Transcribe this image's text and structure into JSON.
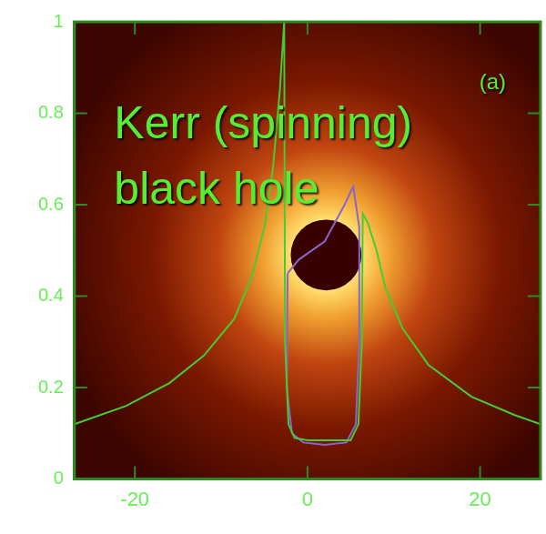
{
  "chart_data": {
    "type": "line",
    "annotations": [
      "Kerr (spinning) black hole",
      "(a)"
    ],
    "xlim": [
      -27,
      27
    ],
    "xticks": [
      -20,
      0,
      20
    ],
    "ylim": [
      0,
      1
    ],
    "yticks": [
      0,
      0.2,
      0.4,
      0.6,
      0.8,
      1
    ],
    "grid": false,
    "series": [
      {
        "color": "#44cc33",
        "x": [
          -27,
          -21,
          -16,
          -12,
          -8.5,
          -6.5,
          -5,
          -4,
          -3.2,
          -2.8,
          -2.7,
          -2.6,
          -2.2,
          -1.5,
          0,
          5,
          5.9,
          6.3,
          6.4,
          7,
          8,
          9,
          11,
          14,
          19,
          24,
          27
        ],
        "values": [
          0.12,
          0.16,
          0.21,
          0.27,
          0.35,
          0.44,
          0.55,
          0.68,
          0.85,
          0.97,
          1,
          0.3,
          0.12,
          0.09,
          0.085,
          0.085,
          0.12,
          0.3,
          0.58,
          0.56,
          0.5,
          0.42,
          0.33,
          0.25,
          0.18,
          0.14,
          0.12
        ]
      },
      {
        "color": "#8866cc",
        "x": [
          -2.3,
          -2.4,
          -1.8,
          -0.5,
          2,
          4.5,
          5.6,
          6,
          6,
          5.3,
          4.3,
          2,
          -1,
          -2.3
        ],
        "values": [
          0.45,
          0.2,
          0.1,
          0.08,
          0.075,
          0.08,
          0.12,
          0.3,
          0.55,
          0.64,
          0.6,
          0.52,
          0.48,
          0.45
        ]
      }
    ]
  }
}
